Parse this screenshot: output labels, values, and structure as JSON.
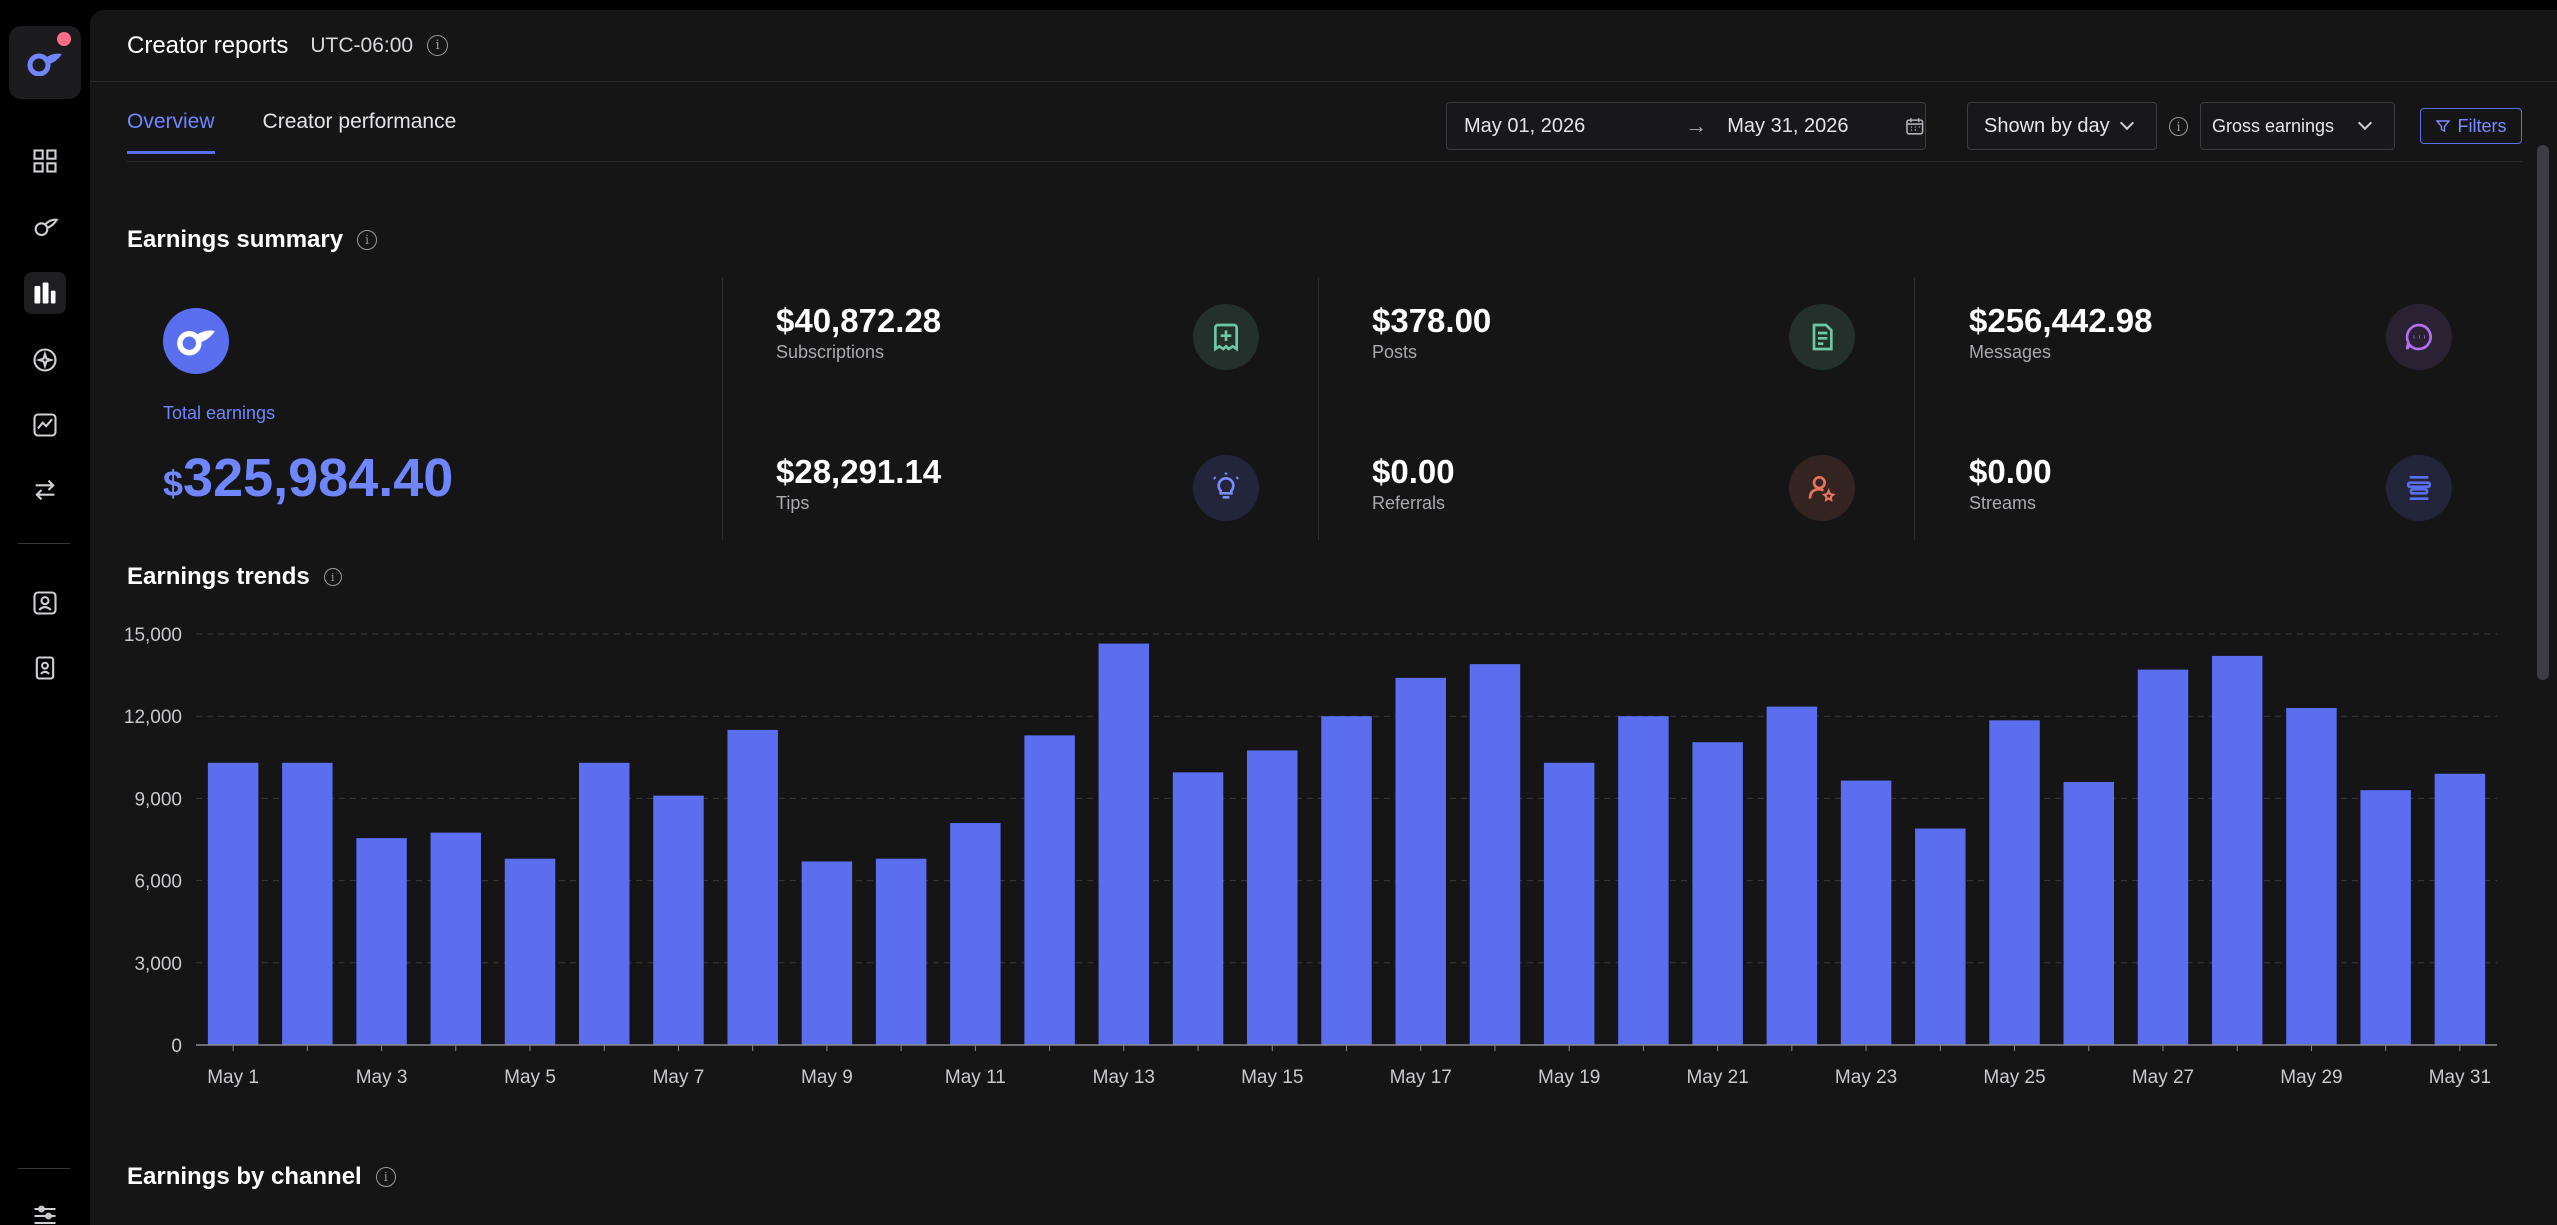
{
  "header": {
    "title": "Creator reports",
    "timezone": "UTC-06:00"
  },
  "tabs": [
    {
      "label": "Overview",
      "active": true
    },
    {
      "label": "Creator performance",
      "active": false
    }
  ],
  "date_range": {
    "start": "May 01, 2026",
    "end": "May 31, 2026"
  },
  "controls": {
    "granularity": "Shown by day",
    "metric": "Gross earnings",
    "filters_label": "Filters"
  },
  "summary": {
    "title": "Earnings summary",
    "total_label": "Total earnings",
    "total_currency": "$",
    "total_value": "325,984.40",
    "metrics": [
      {
        "value": "$40,872.28",
        "label": "Subscriptions",
        "icon": "plus-square-icon",
        "color": "#6fc7a6"
      },
      {
        "value": "$378.00",
        "label": "Posts",
        "icon": "document-icon",
        "color": "#6fc7a6"
      },
      {
        "value": "$256,442.98",
        "label": "Messages",
        "icon": "chat-bubble-icon",
        "color": "#b46ff0"
      },
      {
        "value": "$28,291.14",
        "label": "Tips",
        "icon": "lightbulb-icon",
        "color": "#7c8cff"
      },
      {
        "value": "$0.00",
        "label": "Referrals",
        "icon": "user-star-icon",
        "color": "#e8735f"
      },
      {
        "value": "$0.00",
        "label": "Streams",
        "icon": "streams-icon",
        "color": "#5b6ef0"
      }
    ]
  },
  "trends": {
    "title": "Earnings trends"
  },
  "channel": {
    "title": "Earnings by channel"
  },
  "colors": {
    "accent": "#5b6ef0",
    "accent_text": "#6f86ff",
    "background": "#151516"
  },
  "chart_data": {
    "type": "bar",
    "categories": [
      "May 1",
      "May 2",
      "May 3",
      "May 4",
      "May 5",
      "May 6",
      "May 7",
      "May 8",
      "May 9",
      "May 10",
      "May 11",
      "May 12",
      "May 13",
      "May 14",
      "May 15",
      "May 16",
      "May 17",
      "May 18",
      "May 19",
      "May 20",
      "May 21",
      "May 22",
      "May 23",
      "May 24",
      "May 25",
      "May 26",
      "May 27",
      "May 28",
      "May 29",
      "May 30",
      "May 31"
    ],
    "tick_labels": [
      "May 1",
      "May 3",
      "May 5",
      "May 7",
      "May 9",
      "May 11",
      "May 13",
      "May 15",
      "May 17",
      "May 19",
      "May 21",
      "May 23",
      "May 25",
      "May 27",
      "May 29",
      "May 31"
    ],
    "values": [
      10300,
      10300,
      7550,
      7750,
      6800,
      10300,
      9100,
      11500,
      6700,
      6800,
      8100,
      11300,
      14650,
      9950,
      10750,
      12000,
      13400,
      13900,
      10300,
      12000,
      11050,
      12350,
      9650,
      7900,
      11850,
      9600,
      13700,
      14200,
      12300,
      9300,
      9900
    ],
    "y_ticks": [
      "0",
      "3,000",
      "6,000",
      "9,000",
      "12,000",
      "15,000"
    ],
    "ylim": [
      0,
      15000
    ],
    "grid": true,
    "bar_color": "#5b6ef0"
  }
}
